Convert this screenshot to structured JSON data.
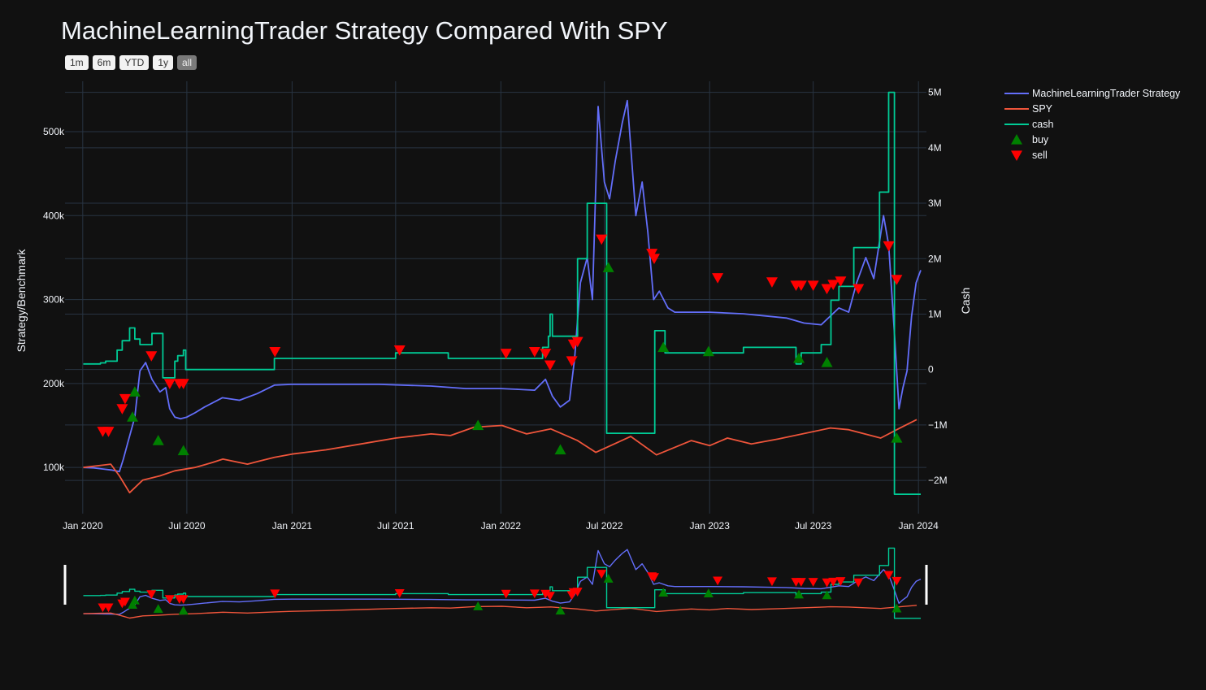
{
  "title": "MachineLearningTrader Strategy Compared With SPY",
  "range_buttons": [
    {
      "label": "1m",
      "active": false
    },
    {
      "label": "6m",
      "active": false
    },
    {
      "label": "YTD",
      "active": false
    },
    {
      "label": "1y",
      "active": false
    },
    {
      "label": "all",
      "active": true
    }
  ],
  "colors": {
    "background": "#111111",
    "grid": "#283442",
    "strategy": "#636efa",
    "spy": "#ef553b",
    "cash": "#00cc96",
    "buy": "#008000",
    "sell": "#ff0000"
  },
  "chart_data": {
    "type": "line",
    "title": "MachineLearningTrader Strategy Compared With SPY",
    "xlabel": "",
    "ylabel": "Strategy/Benchmark",
    "y2label": "Cash",
    "x_ticks": [
      "Jan 2020",
      "Jul 2020",
      "Jan 2021",
      "Jul 2021",
      "Jan 2022",
      "Jul 2022",
      "Jan 2023",
      "Jul 2023",
      "Jan 2024"
    ],
    "y_ticks": [
      "100k",
      "200k",
      "300k",
      "400k",
      "500k"
    ],
    "y2_ticks": [
      "5M",
      "4M",
      "3M",
      "2M",
      "1M",
      "0",
      "−1M",
      "−2M"
    ],
    "xlim": [
      "2019-12-01",
      "2024-01-15"
    ],
    "ylim": [
      45000,
      560000
    ],
    "y2lim": [
      -2600000,
      5200000
    ],
    "grid": true,
    "legend_position": "top-right",
    "range_slider": true,
    "series": [
      {
        "name": "MachineLearningTrader Strategy",
        "axis": "y",
        "mode": "lines",
        "points": [
          [
            "2020-01-02",
            100000
          ],
          [
            "2020-01-20",
            99500
          ],
          [
            "2020-02-20",
            97000
          ],
          [
            "2020-03-05",
            95000
          ],
          [
            "2020-03-12",
            110000
          ],
          [
            "2020-03-20",
            130000
          ],
          [
            "2020-04-01",
            160000
          ],
          [
            "2020-04-10",
            215000
          ],
          [
            "2020-04-20",
            225000
          ],
          [
            "2020-05-01",
            205000
          ],
          [
            "2020-05-15",
            190000
          ],
          [
            "2020-05-25",
            195000
          ],
          [
            "2020-06-01",
            170000
          ],
          [
            "2020-06-10",
            160000
          ],
          [
            "2020-06-20",
            158000
          ],
          [
            "2020-07-01",
            160000
          ],
          [
            "2020-07-15",
            165000
          ],
          [
            "2020-08-01",
            172000
          ],
          [
            "2020-09-01",
            183000
          ],
          [
            "2020-10-01",
            180000
          ],
          [
            "2020-11-01",
            188000
          ],
          [
            "2020-12-01",
            198000
          ],
          [
            "2021-01-01",
            199000
          ],
          [
            "2021-03-01",
            199000
          ],
          [
            "2021-06-01",
            199000
          ],
          [
            "2021-09-01",
            197000
          ],
          [
            "2021-11-01",
            194000
          ],
          [
            "2022-01-01",
            194000
          ],
          [
            "2022-02-01",
            193000
          ],
          [
            "2022-03-01",
            192000
          ],
          [
            "2022-03-20",
            205000
          ],
          [
            "2022-04-01",
            185000
          ],
          [
            "2022-04-15",
            172000
          ],
          [
            "2022-05-01",
            180000
          ],
          [
            "2022-05-10",
            230000
          ],
          [
            "2022-05-20",
            320000
          ],
          [
            "2022-06-01",
            350000
          ],
          [
            "2022-06-10",
            300000
          ],
          [
            "2022-06-20",
            530000
          ],
          [
            "2022-07-01",
            440000
          ],
          [
            "2022-07-10",
            420000
          ],
          [
            "2022-07-20",
            465000
          ],
          [
            "2022-08-01",
            510000
          ],
          [
            "2022-08-10",
            537000
          ],
          [
            "2022-08-25",
            400000
          ],
          [
            "2022-09-05",
            440000
          ],
          [
            "2022-09-15",
            380000
          ],
          [
            "2022-09-25",
            300000
          ],
          [
            "2022-10-05",
            310000
          ],
          [
            "2022-10-20",
            290000
          ],
          [
            "2022-11-01",
            285000
          ],
          [
            "2022-12-01",
            285000
          ],
          [
            "2023-01-01",
            285000
          ],
          [
            "2023-03-01",
            283000
          ],
          [
            "2023-04-15",
            280000
          ],
          [
            "2023-05-15",
            278000
          ],
          [
            "2023-06-15",
            272000
          ],
          [
            "2023-07-15",
            270000
          ],
          [
            "2023-08-15",
            290000
          ],
          [
            "2023-09-01",
            285000
          ],
          [
            "2023-09-15",
            320000
          ],
          [
            "2023-10-01",
            350000
          ],
          [
            "2023-10-15",
            325000
          ],
          [
            "2023-11-01",
            400000
          ],
          [
            "2023-11-10",
            365000
          ],
          [
            "2023-11-20",
            260000
          ],
          [
            "2023-11-28",
            170000
          ],
          [
            "2023-12-05",
            195000
          ],
          [
            "2023-12-12",
            215000
          ],
          [
            "2023-12-20",
            280000
          ],
          [
            "2023-12-28",
            320000
          ],
          [
            "2024-01-05",
            335000
          ]
        ]
      },
      {
        "name": "SPY",
        "axis": "y",
        "mode": "lines",
        "points": [
          [
            "2020-01-02",
            100000
          ],
          [
            "2020-02-19",
            104000
          ],
          [
            "2020-03-05",
            90000
          ],
          [
            "2020-03-23",
            70000
          ],
          [
            "2020-04-15",
            85000
          ],
          [
            "2020-05-15",
            90000
          ],
          [
            "2020-06-10",
            96000
          ],
          [
            "2020-07-15",
            100000
          ],
          [
            "2020-08-15",
            106000
          ],
          [
            "2020-09-02",
            110000
          ],
          [
            "2020-10-15",
            104000
          ],
          [
            "2020-11-01",
            107000
          ],
          [
            "2020-12-01",
            112000
          ],
          [
            "2021-01-01",
            116000
          ],
          [
            "2021-03-01",
            121000
          ],
          [
            "2021-05-01",
            128000
          ],
          [
            "2021-07-01",
            135000
          ],
          [
            "2021-09-01",
            140000
          ],
          [
            "2021-10-05",
            138000
          ],
          [
            "2021-11-15",
            148000
          ],
          [
            "2022-01-03",
            150000
          ],
          [
            "2022-02-15",
            140000
          ],
          [
            "2022-03-29",
            146000
          ],
          [
            "2022-05-15",
            132000
          ],
          [
            "2022-06-16",
            118000
          ],
          [
            "2022-08-16",
            137000
          ],
          [
            "2022-09-30",
            115000
          ],
          [
            "2022-11-30",
            132000
          ],
          [
            "2023-01-01",
            126000
          ],
          [
            "2023-02-01",
            135000
          ],
          [
            "2023-03-15",
            128000
          ],
          [
            "2023-05-01",
            134000
          ],
          [
            "2023-07-31",
            147000
          ],
          [
            "2023-09-01",
            145000
          ],
          [
            "2023-10-27",
            135000
          ],
          [
            "2023-11-30",
            147000
          ],
          [
            "2023-12-29",
            157000
          ]
        ]
      },
      {
        "name": "cash",
        "axis": "y2",
        "mode": "lines",
        "shape": "hv",
        "points": [
          [
            "2020-01-02",
            100000
          ],
          [
            "2020-02-01",
            120000
          ],
          [
            "2020-02-10",
            150000
          ],
          [
            "2020-03-01",
            350000
          ],
          [
            "2020-03-10",
            520000
          ],
          [
            "2020-03-23",
            750000
          ],
          [
            "2020-04-01",
            550000
          ],
          [
            "2020-04-10",
            450000
          ],
          [
            "2020-05-01",
            650000
          ],
          [
            "2020-05-20",
            -150000
          ],
          [
            "2020-06-10",
            150000
          ],
          [
            "2020-06-15",
            250000
          ],
          [
            "2020-06-25",
            350000
          ],
          [
            "2020-06-29",
            0
          ],
          [
            "2020-12-01",
            200000
          ],
          [
            "2021-07-01",
            300000
          ],
          [
            "2021-10-01",
            200000
          ],
          [
            "2022-03-15",
            400000
          ],
          [
            "2022-03-25",
            600000
          ],
          [
            "2022-03-28",
            1000000
          ],
          [
            "2022-04-01",
            600000
          ],
          [
            "2022-05-15",
            2000000
          ],
          [
            "2022-06-01",
            3000000
          ],
          [
            "2022-07-05",
            -1150000
          ],
          [
            "2022-09-27",
            700000
          ],
          [
            "2022-10-15",
            300000
          ],
          [
            "2022-11-15",
            300000
          ],
          [
            "2023-03-01",
            400000
          ],
          [
            "2023-06-01",
            100000
          ],
          [
            "2023-06-10",
            300000
          ],
          [
            "2023-07-15",
            450000
          ],
          [
            "2023-08-01",
            1250000
          ],
          [
            "2023-08-15",
            1500000
          ],
          [
            "2023-09-01",
            1500000
          ],
          [
            "2023-09-10",
            2200000
          ],
          [
            "2023-10-25",
            3200000
          ],
          [
            "2023-11-10",
            5000000
          ],
          [
            "2023-11-20",
            -2250000
          ],
          [
            "2024-01-05",
            -2250000
          ]
        ]
      },
      {
        "name": "buy",
        "axis": "y",
        "mode": "markers",
        "marker": "triangle-up",
        "points": [
          [
            "2020-03-28",
            160000
          ],
          [
            "2020-04-01",
            190000
          ],
          [
            "2020-05-12",
            132000
          ],
          [
            "2020-06-25",
            120000
          ],
          [
            "2021-11-22",
            150000
          ],
          [
            "2022-04-15",
            121000
          ],
          [
            "2022-07-08",
            338000
          ],
          [
            "2022-10-12",
            243000
          ],
          [
            "2022-12-30",
            238000
          ],
          [
            "2023-06-06",
            230000
          ],
          [
            "2023-07-25",
            225000
          ],
          [
            "2023-11-24",
            135000
          ]
        ]
      },
      {
        "name": "sell",
        "axis": "y",
        "mode": "markers",
        "marker": "triangle-down",
        "points": [
          [
            "2020-02-05",
            143000
          ],
          [
            "2020-02-15",
            143000
          ],
          [
            "2020-03-10",
            170000
          ],
          [
            "2020-03-15",
            182000
          ],
          [
            "2020-04-30",
            233000
          ],
          [
            "2020-06-01",
            200000
          ],
          [
            "2020-06-18",
            200000
          ],
          [
            "2020-06-25",
            200000
          ],
          [
            "2020-12-02",
            238000
          ],
          [
            "2021-07-08",
            240000
          ],
          [
            "2022-01-10",
            236000
          ],
          [
            "2022-03-01",
            238000
          ],
          [
            "2022-03-20",
            236000
          ],
          [
            "2022-03-28",
            222000
          ],
          [
            "2022-05-05",
            227000
          ],
          [
            "2022-05-08",
            247000
          ],
          [
            "2022-05-15",
            250000
          ],
          [
            "2022-06-26",
            372000
          ],
          [
            "2022-09-22",
            355000
          ],
          [
            "2022-09-26",
            349000
          ],
          [
            "2023-01-15",
            326000
          ],
          [
            "2023-04-20",
            321000
          ],
          [
            "2023-06-01",
            317000
          ],
          [
            "2023-06-10",
            317000
          ],
          [
            "2023-07-01",
            317000
          ],
          [
            "2023-07-25",
            313000
          ],
          [
            "2023-08-05",
            318000
          ],
          [
            "2023-08-18",
            322000
          ],
          [
            "2023-09-18",
            313000
          ],
          [
            "2023-11-10",
            364000
          ],
          [
            "2023-11-24",
            324000
          ]
        ]
      }
    ]
  }
}
